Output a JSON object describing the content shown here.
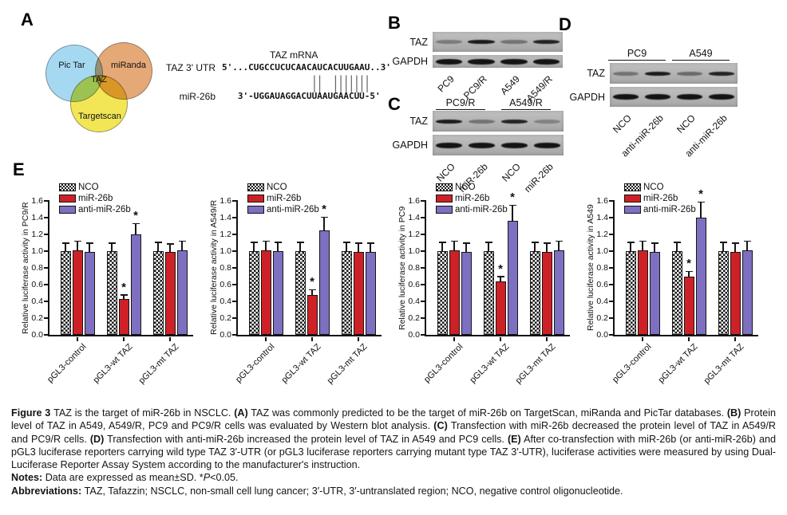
{
  "panel_a": {
    "label": "A",
    "venn": {
      "circles": [
        {
          "name": "pictar",
          "label": "Pic Tar",
          "color": "#a5d9f1"
        },
        {
          "name": "miranda",
          "label": "miRanda",
          "color": "#e5a877"
        },
        {
          "name": "targetscan",
          "label": "Targetscan",
          "color": "#f2e656"
        }
      ],
      "center_label": "TAZ"
    },
    "alignment": {
      "mrna_title": "TAZ mRNA",
      "utr_label": "TAZ 3' UTR",
      "utr_seq": "5'...CUGCCUCUCAACAUCACUUGAAU..3'",
      "pair_bars": "                 ||  |||||||",
      "mir_label": "miR-26b",
      "mir_seq": "   3'-UGGAUAGGACUUAAUGAACUU-5'"
    }
  },
  "panel_b": {
    "label": "B",
    "rows": [
      {
        "name": "TAZ",
        "bands": [
          0.35,
          0.95,
          0.4,
          0.9
        ]
      },
      {
        "name": "GAPDH",
        "bands": [
          1,
          1,
          1,
          1
        ]
      }
    ],
    "lanes": [
      "PC9",
      "PC9/R",
      "A549",
      "A549/R"
    ]
  },
  "panel_c": {
    "label": "C",
    "groups": [
      "PC9/R",
      "A549/R"
    ],
    "rows": [
      {
        "name": "TAZ",
        "bands": [
          0.95,
          0.4,
          0.9,
          0.3
        ]
      },
      {
        "name": "GAPDH",
        "bands": [
          1,
          1,
          1,
          1
        ]
      }
    ],
    "lanes": [
      "NCO",
      "miR-26b",
      "NCO",
      "miR-26b"
    ]
  },
  "panel_d": {
    "label": "D",
    "groups": [
      "PC9",
      "A549"
    ],
    "rows": [
      {
        "name": "TAZ",
        "bands": [
          0.4,
          0.95,
          0.45,
          0.9
        ]
      },
      {
        "name": "GAPDH",
        "bands": [
          1,
          1,
          1,
          1
        ]
      }
    ],
    "lanes": [
      "NCO",
      "anti-miR-26b",
      "NCO",
      "anti-miR-26b"
    ]
  },
  "panel_e": {
    "label": "E"
  },
  "legend": {
    "entries": [
      {
        "label": "NCO",
        "fill": "checker"
      },
      {
        "label": "miR-26b",
        "fill": "#ce2127"
      },
      {
        "label": "anti-miR-26b",
        "fill": "#7e6fc0"
      }
    ]
  },
  "sig_marker": "*",
  "colors": {
    "red": "#ce2127",
    "purple": "#7e6fc0",
    "axis": "#111111"
  },
  "chart_data": [
    {
      "type": "bar",
      "ylabel": "Relative luciferase activity in PC9/R",
      "categories": [
        "pGL3-control",
        "pGL3-wt TAZ",
        "pGL3-mt TAZ"
      ],
      "series": [
        {
          "name": "NCO",
          "values": [
            1.0,
            1.0,
            1.0
          ],
          "errors": [
            0.09,
            0.09,
            0.1
          ]
        },
        {
          "name": "miR-26b",
          "values": [
            1.01,
            0.43,
            0.99
          ],
          "errors": [
            0.1,
            0.04,
            0.09
          ]
        },
        {
          "name": "anti-miR-26b",
          "values": [
            0.99,
            1.2,
            1.01
          ],
          "errors": [
            0.1,
            0.12,
            0.1
          ]
        }
      ],
      "significance": [
        [
          false,
          false,
          false
        ],
        [
          false,
          true,
          false
        ],
        [
          false,
          true,
          false
        ]
      ],
      "ylim": [
        0,
        1.6
      ],
      "ytick_step": 0.2,
      "legend_position": "top-left",
      "grid": false
    },
    {
      "type": "bar",
      "ylabel": "Relative luciferase activity in A549/R",
      "categories": [
        "pGL3-control",
        "pGL3-wt TAZ",
        "pGL3-mt TAZ"
      ],
      "series": [
        {
          "name": "NCO",
          "values": [
            1.0,
            1.0,
            1.0
          ],
          "errors": [
            0.1,
            0.1,
            0.1
          ]
        },
        {
          "name": "miR-26b",
          "values": [
            1.01,
            0.48,
            0.99
          ],
          "errors": [
            0.1,
            0.05,
            0.1
          ]
        },
        {
          "name": "anti-miR-26b",
          "values": [
            1.0,
            1.25,
            0.99
          ],
          "errors": [
            0.1,
            0.15,
            0.1
          ]
        }
      ],
      "significance": [
        [
          false,
          false,
          false
        ],
        [
          false,
          true,
          false
        ],
        [
          false,
          true,
          false
        ]
      ],
      "ylim": [
        0,
        1.6
      ],
      "ytick_step": 0.2,
      "legend_position": "top-left",
      "grid": false
    },
    {
      "type": "bar",
      "ylabel": "Relative luciferase activity in PC9",
      "categories": [
        "pGL3-control",
        "pGL3-wt TAZ",
        "pGL3-mt TAZ"
      ],
      "series": [
        {
          "name": "NCO",
          "values": [
            1.0,
            1.0,
            1.0
          ],
          "errors": [
            0.1,
            0.1,
            0.1
          ]
        },
        {
          "name": "miR-26b",
          "values": [
            1.01,
            0.64,
            0.99
          ],
          "errors": [
            0.1,
            0.05,
            0.1
          ]
        },
        {
          "name": "anti-miR-26b",
          "values": [
            0.99,
            1.36,
            1.01
          ],
          "errors": [
            0.1,
            0.18,
            0.1
          ]
        }
      ],
      "significance": [
        [
          false,
          false,
          false
        ],
        [
          false,
          true,
          false
        ],
        [
          false,
          true,
          false
        ]
      ],
      "ylim": [
        0,
        1.6
      ],
      "ytick_step": 0.2,
      "legend_position": "top-left",
      "grid": false
    },
    {
      "type": "bar",
      "ylabel": "Relative luciferase activity in A549",
      "categories": [
        "pGL3-control",
        "pGL3-wt TAZ",
        "pGL3-mt TAZ"
      ],
      "series": [
        {
          "name": "NCO",
          "values": [
            1.0,
            1.0,
            1.0
          ],
          "errors": [
            0.1,
            0.1,
            0.1
          ]
        },
        {
          "name": "miR-26b",
          "values": [
            1.01,
            0.7,
            0.99
          ],
          "errors": [
            0.1,
            0.05,
            0.1
          ]
        },
        {
          "name": "anti-miR-26b",
          "values": [
            0.99,
            1.4,
            1.01
          ],
          "errors": [
            0.1,
            0.18,
            0.1
          ]
        }
      ],
      "significance": [
        [
          false,
          false,
          false
        ],
        [
          false,
          true,
          false
        ],
        [
          false,
          true,
          false
        ]
      ],
      "ylim": [
        0,
        1.6
      ],
      "ytick_step": 0.2,
      "legend_position": "top-left",
      "grid": false
    }
  ],
  "caption": {
    "paragraph": [
      {
        "t": "Figure 3 ",
        "b": true
      },
      {
        "t": "TAZ is the target of miR-26b in NSCLC. "
      },
      {
        "t": "(A)",
        "b": true
      },
      {
        "t": " TAZ was commonly predicted to be the target of miR-26b on TargetScan, miRanda and PicTar databases. "
      },
      {
        "t": "(B)",
        "b": true
      },
      {
        "t": " Protein level of TAZ in A549, A549/R, PC9 and PC9/R cells was evaluated by Western blot analysis. "
      },
      {
        "t": "(C)",
        "b": true
      },
      {
        "t": " Transfection with miR-26b decreased the protein level of TAZ in A549/R and PC9/R cells. "
      },
      {
        "t": "(D)",
        "b": true
      },
      {
        "t": " Transfection with anti-miR-26b increased the protein level of TAZ in A549 and PC9 cells. "
      },
      {
        "t": "(E)",
        "b": true
      },
      {
        "t": " After co-transfection with miR-26b (or anti-miR-26b) and pGL3 luciferase reporters carrying wild type TAZ 3′-UTR (or pGL3 luciferase reporters carrying mutant type TAZ 3′-UTR), luciferase activities were measured by using Dual-Luciferase Reporter Assay System according to the manufacturer's instruction."
      }
    ],
    "notes": [
      {
        "t": "Notes: ",
        "b": true
      },
      {
        "t": "Data are expressed as mean±SD. *"
      },
      {
        "t": "P",
        "i": true
      },
      {
        "t": "<0.05."
      }
    ],
    "abbreviations": [
      {
        "t": "Abbreviations: ",
        "b": true
      },
      {
        "t": "TAZ, Tafazzin; NSCLC, non-small cell lung cancer; 3′-UTR, 3′-untranslated region; NCO, negative control oligonucleotide."
      }
    ]
  }
}
